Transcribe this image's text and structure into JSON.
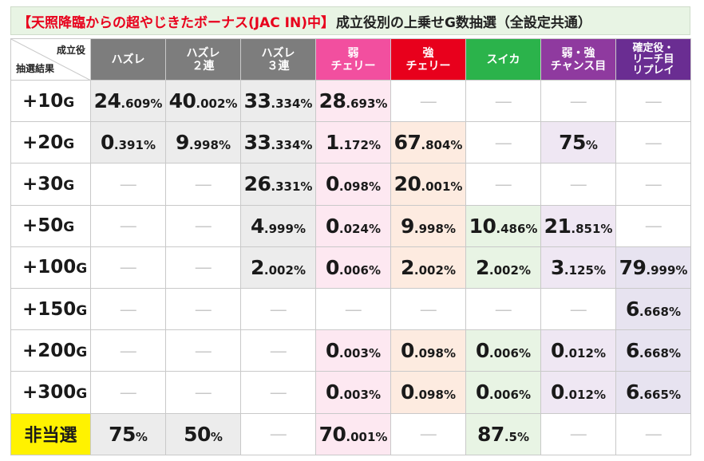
{
  "title": {
    "highlight": "【天照降臨からの超やじきたボーナス(JAC IN)中】",
    "rest": "成立役別の上乗せG数抽選（全設定共通）"
  },
  "corner": {
    "top_right": "成立役",
    "bottom_left": "抽選結果"
  },
  "columns": [
    {
      "label": "ハズレ",
      "color": "#7d7d7d"
    },
    {
      "label": "ハズレ\n２連",
      "color": "#7d7d7d"
    },
    {
      "label": "ハズレ\n３連",
      "color": "#7d7d7d"
    },
    {
      "label": "弱\nチェリー",
      "color": "#f24f9f"
    },
    {
      "label": "強\nチェリー",
      "color": "#e8001c"
    },
    {
      "label": "スイカ",
      "color": "#2bb34b"
    },
    {
      "label": "弱・強\nチャンス目",
      "color": "#8f3a9f"
    },
    {
      "label": "確定役・\nリーチ目\nリプレイ",
      "color": "#6a2d92"
    }
  ],
  "dash": "―",
  "rows": [
    {
      "label": "+10",
      "unit": "G",
      "cells": [
        "24.609%",
        "40.002%",
        "33.334%",
        "28.693%",
        "",
        "",
        "",
        ""
      ]
    },
    {
      "label": "+20",
      "unit": "G",
      "cells": [
        "0.391%",
        "9.998%",
        "33.334%",
        "1.172%",
        "67.804%",
        "",
        "75%",
        ""
      ]
    },
    {
      "label": "+30",
      "unit": "G",
      "cells": [
        "",
        "",
        "26.331%",
        "0.098%",
        "20.001%",
        "",
        "",
        ""
      ]
    },
    {
      "label": "+50",
      "unit": "G",
      "cells": [
        "",
        "",
        "4.999%",
        "0.024%",
        "9.998%",
        "10.486%",
        "21.851%",
        ""
      ]
    },
    {
      "label": "+100",
      "unit": "G",
      "cells": [
        "",
        "",
        "2.002%",
        "0.006%",
        "2.002%",
        "2.002%",
        "3.125%",
        "79.999%"
      ]
    },
    {
      "label": "+150",
      "unit": "G",
      "cells": [
        "",
        "",
        "",
        "",
        "",
        "",
        "",
        "6.668%"
      ]
    },
    {
      "label": "+200",
      "unit": "G",
      "cells": [
        "",
        "",
        "",
        "0.003%",
        "0.098%",
        "0.006%",
        "0.012%",
        "6.668%"
      ]
    },
    {
      "label": "+300",
      "unit": "G",
      "cells": [
        "",
        "",
        "",
        "0.003%",
        "0.098%",
        "0.006%",
        "0.012%",
        "6.665%"
      ]
    },
    {
      "label": "非当選",
      "unit": "",
      "cells": [
        "75%",
        "50%",
        "",
        "70.001%",
        "",
        "87.5%",
        "",
        ""
      ]
    }
  ]
}
